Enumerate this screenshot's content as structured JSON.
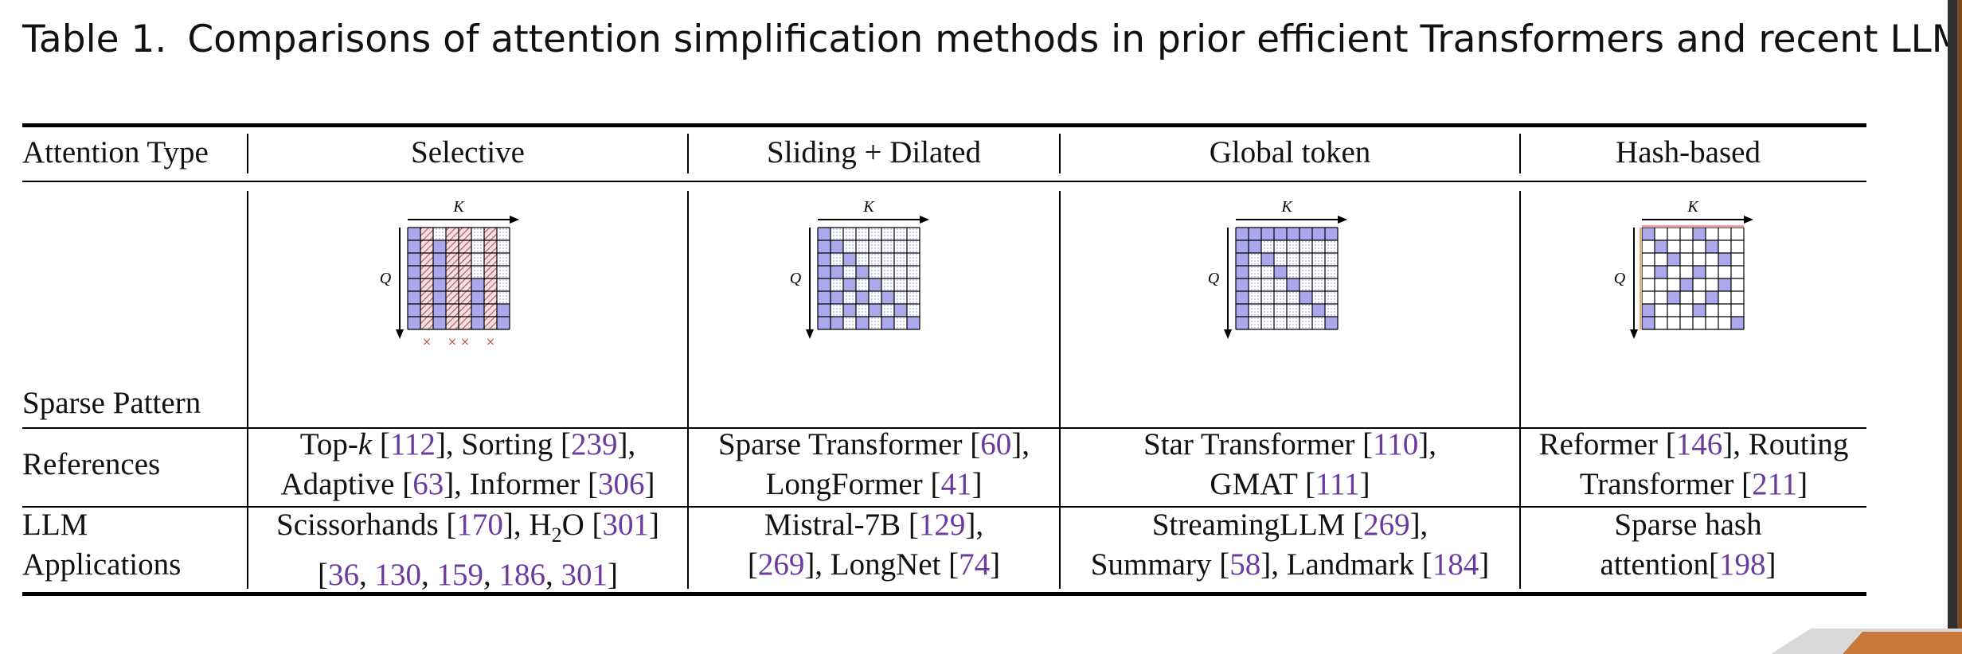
{
  "caption": {
    "label": "Table 1.",
    "text": "Comparisons of attention simplification methods in prior efficient Transformers and recent LLMs."
  },
  "table": {
    "header": {
      "row_label": "Attention Type",
      "columns": [
        "Selective",
        "Sliding + Dilated",
        "Global token",
        "Hash-based"
      ]
    },
    "pattern_row": {
      "label": "Sparse Pattern",
      "axis_k": "K",
      "axis_q": "Q",
      "selective_marker": "×"
    },
    "references_row": {
      "label": "References",
      "selective": {
        "line1_a": "Top-",
        "line1_k": "k",
        "line1_b": " [",
        "ref1": "112",
        "line1_c": "], Sorting [",
        "ref2": "239",
        "line1_d": "],",
        "line2_a": "Adaptive [",
        "ref3": "63",
        "line2_b": "], Informer [",
        "ref4": "306",
        "line2_c": "]"
      },
      "sliding": {
        "line1_a": "Sparse Transformer [",
        "ref1": "60",
        "line1_b": "],",
        "line2_a": "LongFormer [",
        "ref2": "41",
        "line2_b": "]"
      },
      "global": {
        "line1_a": "Star Transformer [",
        "ref1": "110",
        "line1_b": "],",
        "line2_a": "GMAT [",
        "ref2": "111",
        "line2_b": "]"
      },
      "hash": {
        "line1_a": "Reformer [",
        "ref1": "146",
        "line1_b": "], Routing",
        "line2_a": "Transformer [",
        "ref2": "211",
        "line2_b": "]"
      }
    },
    "llm_row": {
      "label_line1": "LLM",
      "label_line2": "Applications",
      "selective": {
        "line1_a": "Scissorhands [",
        "ref1": "170",
        "line1_b": "], H",
        "sub": "2",
        "line1_c": "O [",
        "ref2": "301",
        "line1_d": "]",
        "line2_a": "[",
        "ref3": "36",
        "sep1": ", ",
        "ref4": "130",
        "sep2": ", ",
        "ref5": "159",
        "sep3": ", ",
        "ref6": "186",
        "sep4": ", ",
        "ref7": "301",
        "line2_b": "]"
      },
      "sliding": {
        "line1_a": "Mistral-7B [",
        "ref1": "129",
        "line1_b": "],",
        "line2_a": "[",
        "ref2": "269",
        "line2_b": "], LongNet [",
        "ref3": "74",
        "line2_c": "]"
      },
      "global": {
        "line1_a": "StreamingLLM [",
        "ref1": "269",
        "line1_b": "],",
        "line2_a": "Summary [",
        "ref2": "58",
        "line2_b": "], Landmark [",
        "ref3": "184",
        "line2_c": "]"
      },
      "hash": {
        "line1": "Sparse hash",
        "line2_a": "attention[",
        "ref1": "198",
        "line2_b": "]"
      }
    }
  },
  "colors": {
    "link": "#6b3aa0",
    "cell_fill": "#a9a9ec",
    "hatch": "#c0504d",
    "rule": "#000000"
  }
}
